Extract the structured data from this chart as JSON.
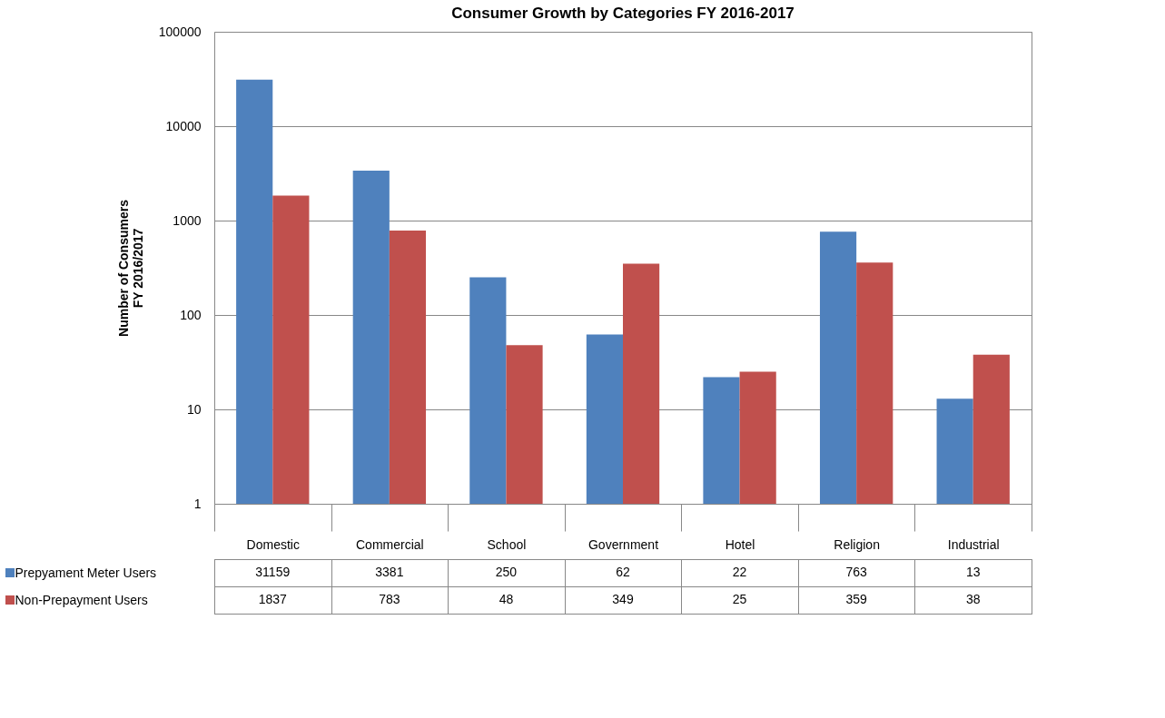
{
  "chart_data": {
    "type": "bar",
    "title": "Consumer Growth by Categories  FY 2016-2017",
    "ylabel": "Number of Consumers\nFY 2016/2017",
    "categories": [
      "Domestic",
      "Commercial",
      "School",
      "Government",
      "Hotel",
      "Religion",
      "Industrial"
    ],
    "series": [
      {
        "name": "Prepyament Meter Users",
        "color": "#4f81bd",
        "values": [
          31159,
          3381,
          250,
          62,
          22,
          763,
          13
        ]
      },
      {
        "name": "Non-Prepayment Users",
        "color": "#c0504d",
        "values": [
          1837,
          783,
          48,
          349,
          25,
          359,
          38
        ]
      }
    ],
    "log": true,
    "ylim": [
      1,
      100000
    ],
    "yticks": [
      1,
      10,
      100,
      1000,
      10000,
      100000
    ],
    "grid": "y",
    "data_labels": true,
    "legend": "bottom"
  }
}
